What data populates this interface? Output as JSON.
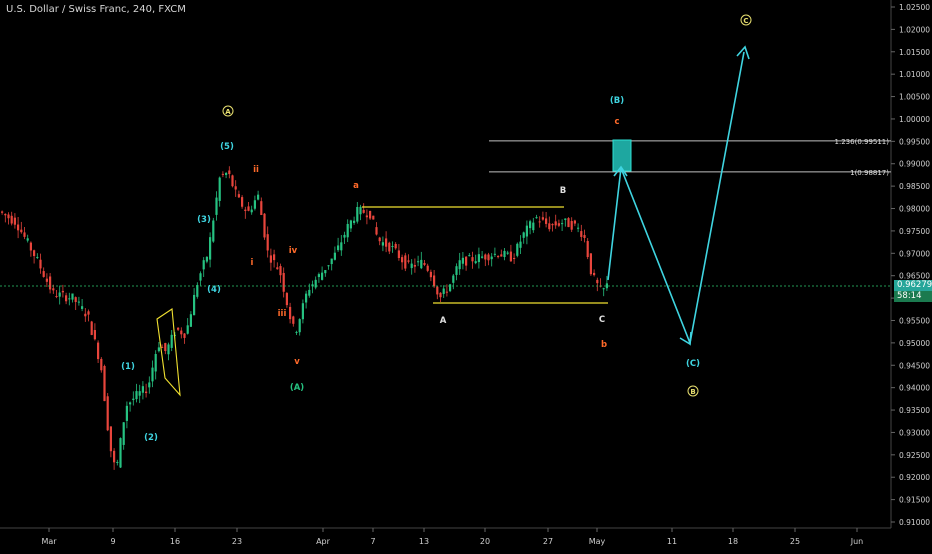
{
  "header": {
    "title": "U.S. Dollar / Swiss Franc, 240, FXCM"
  },
  "price_scale": {
    "ticks": [
      "1.02500",
      "1.02000",
      "1.01500",
      "1.01000",
      "1.00500",
      "1.00000",
      "0.99500",
      "0.99000",
      "0.98500",
      "0.98000",
      "0.97500",
      "0.97000",
      "0.96500",
      "0.96000",
      "0.95500",
      "0.95000",
      "0.94500",
      "0.94000",
      "0.93500",
      "0.93000",
      "0.92500",
      "0.92000",
      "0.91500",
      "0.91000"
    ],
    "last_price": "0.96279",
    "countdown": "58:14"
  },
  "time_axis": {
    "labels": [
      "Mar",
      "9",
      "16",
      "23",
      "Apr",
      "7",
      "13",
      "20",
      "27",
      "May",
      "11",
      "18",
      "25",
      "Jun"
    ]
  },
  "fib_levels": [
    {
      "label": "1.236(0.99511)",
      "price": 0.99511
    },
    {
      "label": "1(0.98817)",
      "price": 0.98817
    }
  ],
  "wave_labels": [
    {
      "id": "major-A",
      "text": "A",
      "circled": true,
      "color": "#e8e070",
      "name": "wave-label-major-a"
    },
    {
      "id": "major-C",
      "text": "C",
      "circled": true,
      "color": "#e8e070",
      "name": "wave-label-major-c"
    },
    {
      "id": "major-B",
      "text": "B",
      "circled": true,
      "color": "#e8e070",
      "name": "wave-label-major-b"
    },
    {
      "id": "w1",
      "text": "(1)",
      "color": "#3fd4e0",
      "name": "wave-label-1"
    },
    {
      "id": "w2",
      "text": "(2)",
      "color": "#3fd4e0",
      "name": "wave-label-2"
    },
    {
      "id": "w3",
      "text": "(3)",
      "color": "#3fd4e0",
      "name": "wave-label-3"
    },
    {
      "id": "w4",
      "text": "(4)",
      "color": "#3fd4e0",
      "name": "wave-label-4"
    },
    {
      "id": "w5",
      "text": "(5)",
      "color": "#3fd4e0",
      "name": "wave-label-5"
    },
    {
      "id": "wA",
      "text": "(A)",
      "color": "#26c281",
      "name": "wave-label-paren-a"
    },
    {
      "id": "wB",
      "text": "(B)",
      "color": "#3fd4e0",
      "name": "wave-label-paren-b"
    },
    {
      "id": "wC",
      "text": "(C)",
      "color": "#3fd4e0",
      "name": "wave-label-paren-c"
    },
    {
      "id": "ii",
      "text": "ii",
      "color": "#ff6a2a",
      "name": "wave-label-ii"
    },
    {
      "id": "i",
      "text": "i",
      "color": "#ff6a2a",
      "name": "wave-label-i"
    },
    {
      "id": "iv",
      "text": "iv",
      "color": "#ff6a2a",
      "name": "wave-label-iv"
    },
    {
      "id": "iii",
      "text": "iii",
      "color": "#ff6a2a",
      "name": "wave-label-iii"
    },
    {
      "id": "v",
      "text": "v",
      "color": "#ff6a2a",
      "name": "wave-label-v"
    },
    {
      "id": "a",
      "text": "a",
      "color": "#ff6a2a",
      "name": "wave-label-a"
    },
    {
      "id": "b",
      "text": "b",
      "color": "#ff6a2a",
      "name": "wave-label-b"
    },
    {
      "id": "c",
      "text": "c",
      "color": "#ff6a2a",
      "name": "wave-label-c"
    },
    {
      "id": "A",
      "text": "A",
      "color": "#e0e0e0",
      "name": "wave-label-cap-a"
    },
    {
      "id": "B",
      "text": "B",
      "color": "#e0e0e0",
      "name": "wave-label-cap-b"
    },
    {
      "id": "C",
      "text": "C",
      "color": "#e0e0e0",
      "name": "wave-label-cap-c"
    }
  ],
  "colors": {
    "background": "#000000",
    "bull": "#26c281",
    "bear": "#e8453c",
    "projection": "#3fd4e0",
    "channel": "#f0e030",
    "fib_line": "#bfbfbf",
    "target_box": "#1ea7a0",
    "last_price_line": "#2ecc71"
  }
}
